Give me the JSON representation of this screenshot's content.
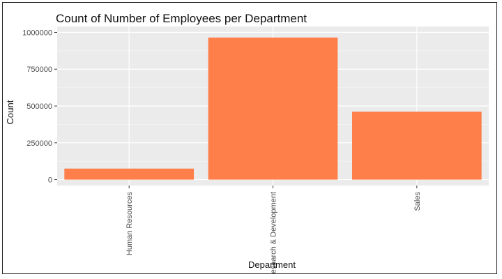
{
  "chart_data": {
    "type": "bar",
    "title": "Count of Number of Employees per Department",
    "xlabel": "Department",
    "ylabel": "Count",
    "categories": [
      "Human Resources",
      "Research & Development",
      "Sales"
    ],
    "values": [
      75000,
      965000,
      462000
    ],
    "ylim": [
      -40000,
      1040000
    ],
    "yticks": [
      0,
      250000,
      500000,
      750000,
      1000000
    ],
    "ytick_labels": [
      "0",
      "250000",
      "500000",
      "750000",
      "1000000"
    ],
    "grid": true,
    "legend": "none",
    "colors": {
      "bar": "#ff7f4a",
      "panel": "#ebebeb",
      "grid_major": "#ffffff",
      "grid_minor": "#f5f5f5"
    }
  }
}
